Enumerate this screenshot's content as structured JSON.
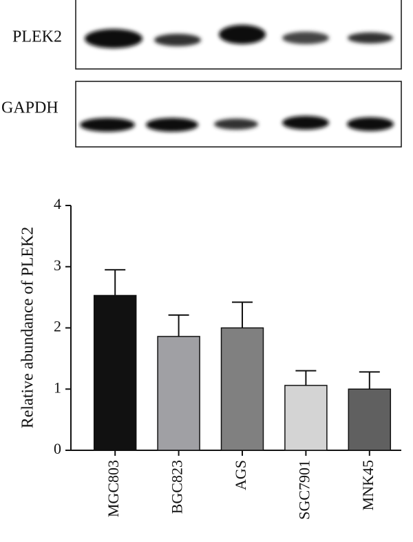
{
  "blot": {
    "rows": [
      "PLEK2",
      "GAPDH"
    ]
  },
  "chart_data": {
    "type": "bar",
    "y_label": "Relative abundance of PLEK2",
    "categories": [
      "MGC803",
      "BGC823",
      "AGS",
      "SGC7901",
      "MNK45"
    ],
    "values": [
      2.53,
      1.86,
      2.0,
      1.06,
      1.0
    ],
    "errors": [
      0.42,
      0.35,
      0.42,
      0.24,
      0.28
    ],
    "colors": [
      "#111111",
      "#a0a0a4",
      "#808080",
      "#d4d4d4",
      "#606060"
    ],
    "ylim": [
      0,
      4
    ],
    "yticks": [
      0,
      1,
      2,
      3,
      4
    ]
  }
}
